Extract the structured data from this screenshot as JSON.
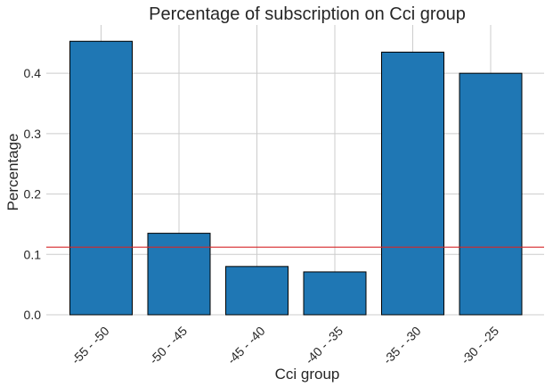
{
  "chart_data": {
    "type": "bar",
    "title": "Percentage of subscription on Cci group",
    "xlabel": "Cci group",
    "ylabel": "Percentage",
    "categories": [
      "-55 - -50",
      "-50 - -45",
      "-45 - -40",
      "-40 - -35",
      "-35 - -30",
      "-30 - -25"
    ],
    "values": [
      0.453,
      0.135,
      0.08,
      0.071,
      0.435,
      0.4
    ],
    "ylim": [
      0,
      0.48
    ],
    "yticks": [
      "0.0",
      "0.1",
      "0.2",
      "0.3",
      "0.4"
    ],
    "reference_line": 0.112,
    "grid": true,
    "colors": {
      "bar": "#1f77b4",
      "reference_line": "#d62728"
    }
  }
}
